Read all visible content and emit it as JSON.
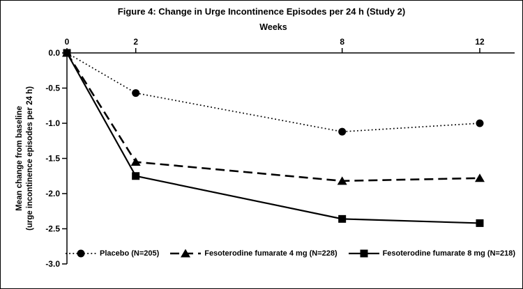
{
  "chart_data": {
    "type": "line",
    "title": "Figure 4: Change in Urge Incontinence Episodes per 24 h (Study 2)",
    "xlabel": "Weeks",
    "ylabel_line1": "Mean change from baseline",
    "ylabel_line2": "(urge incontinence episodes per 24 h)",
    "x": [
      0,
      2,
      8,
      12
    ],
    "xticks": [
      "0",
      "2",
      "8",
      "12"
    ],
    "yticks": [
      "0.0",
      "-0.5",
      "-1.0",
      "-1.5",
      "-2.0",
      "-2.5",
      "-3.0"
    ],
    "ytick_values": [
      0.0,
      -0.5,
      -1.0,
      -1.5,
      -2.0,
      -2.5,
      -3.0
    ],
    "xlim": [
      0,
      12
    ],
    "ylim": [
      -3.0,
      0.0
    ],
    "grid": false,
    "x_axis_position": "top",
    "legend_position": "bottom",
    "axis_color": "#000000",
    "series": [
      {
        "name": "Placebo (N=205)",
        "values": [
          0.0,
          -0.57,
          -1.12,
          -1.0
        ],
        "marker": "circle",
        "dash": "dotted",
        "color": "#000000"
      },
      {
        "name": "Fesoterodine fumarate 4 mg (N=228)",
        "values": [
          0.0,
          -1.55,
          -1.82,
          -1.78
        ],
        "marker": "triangle",
        "dash": "dashed",
        "color": "#000000"
      },
      {
        "name": "Fesoterodine fumarate 8 mg (N=218)",
        "values": [
          0.0,
          -1.75,
          -2.36,
          -2.42
        ],
        "marker": "square",
        "dash": "solid",
        "color": "#000000"
      }
    ]
  }
}
